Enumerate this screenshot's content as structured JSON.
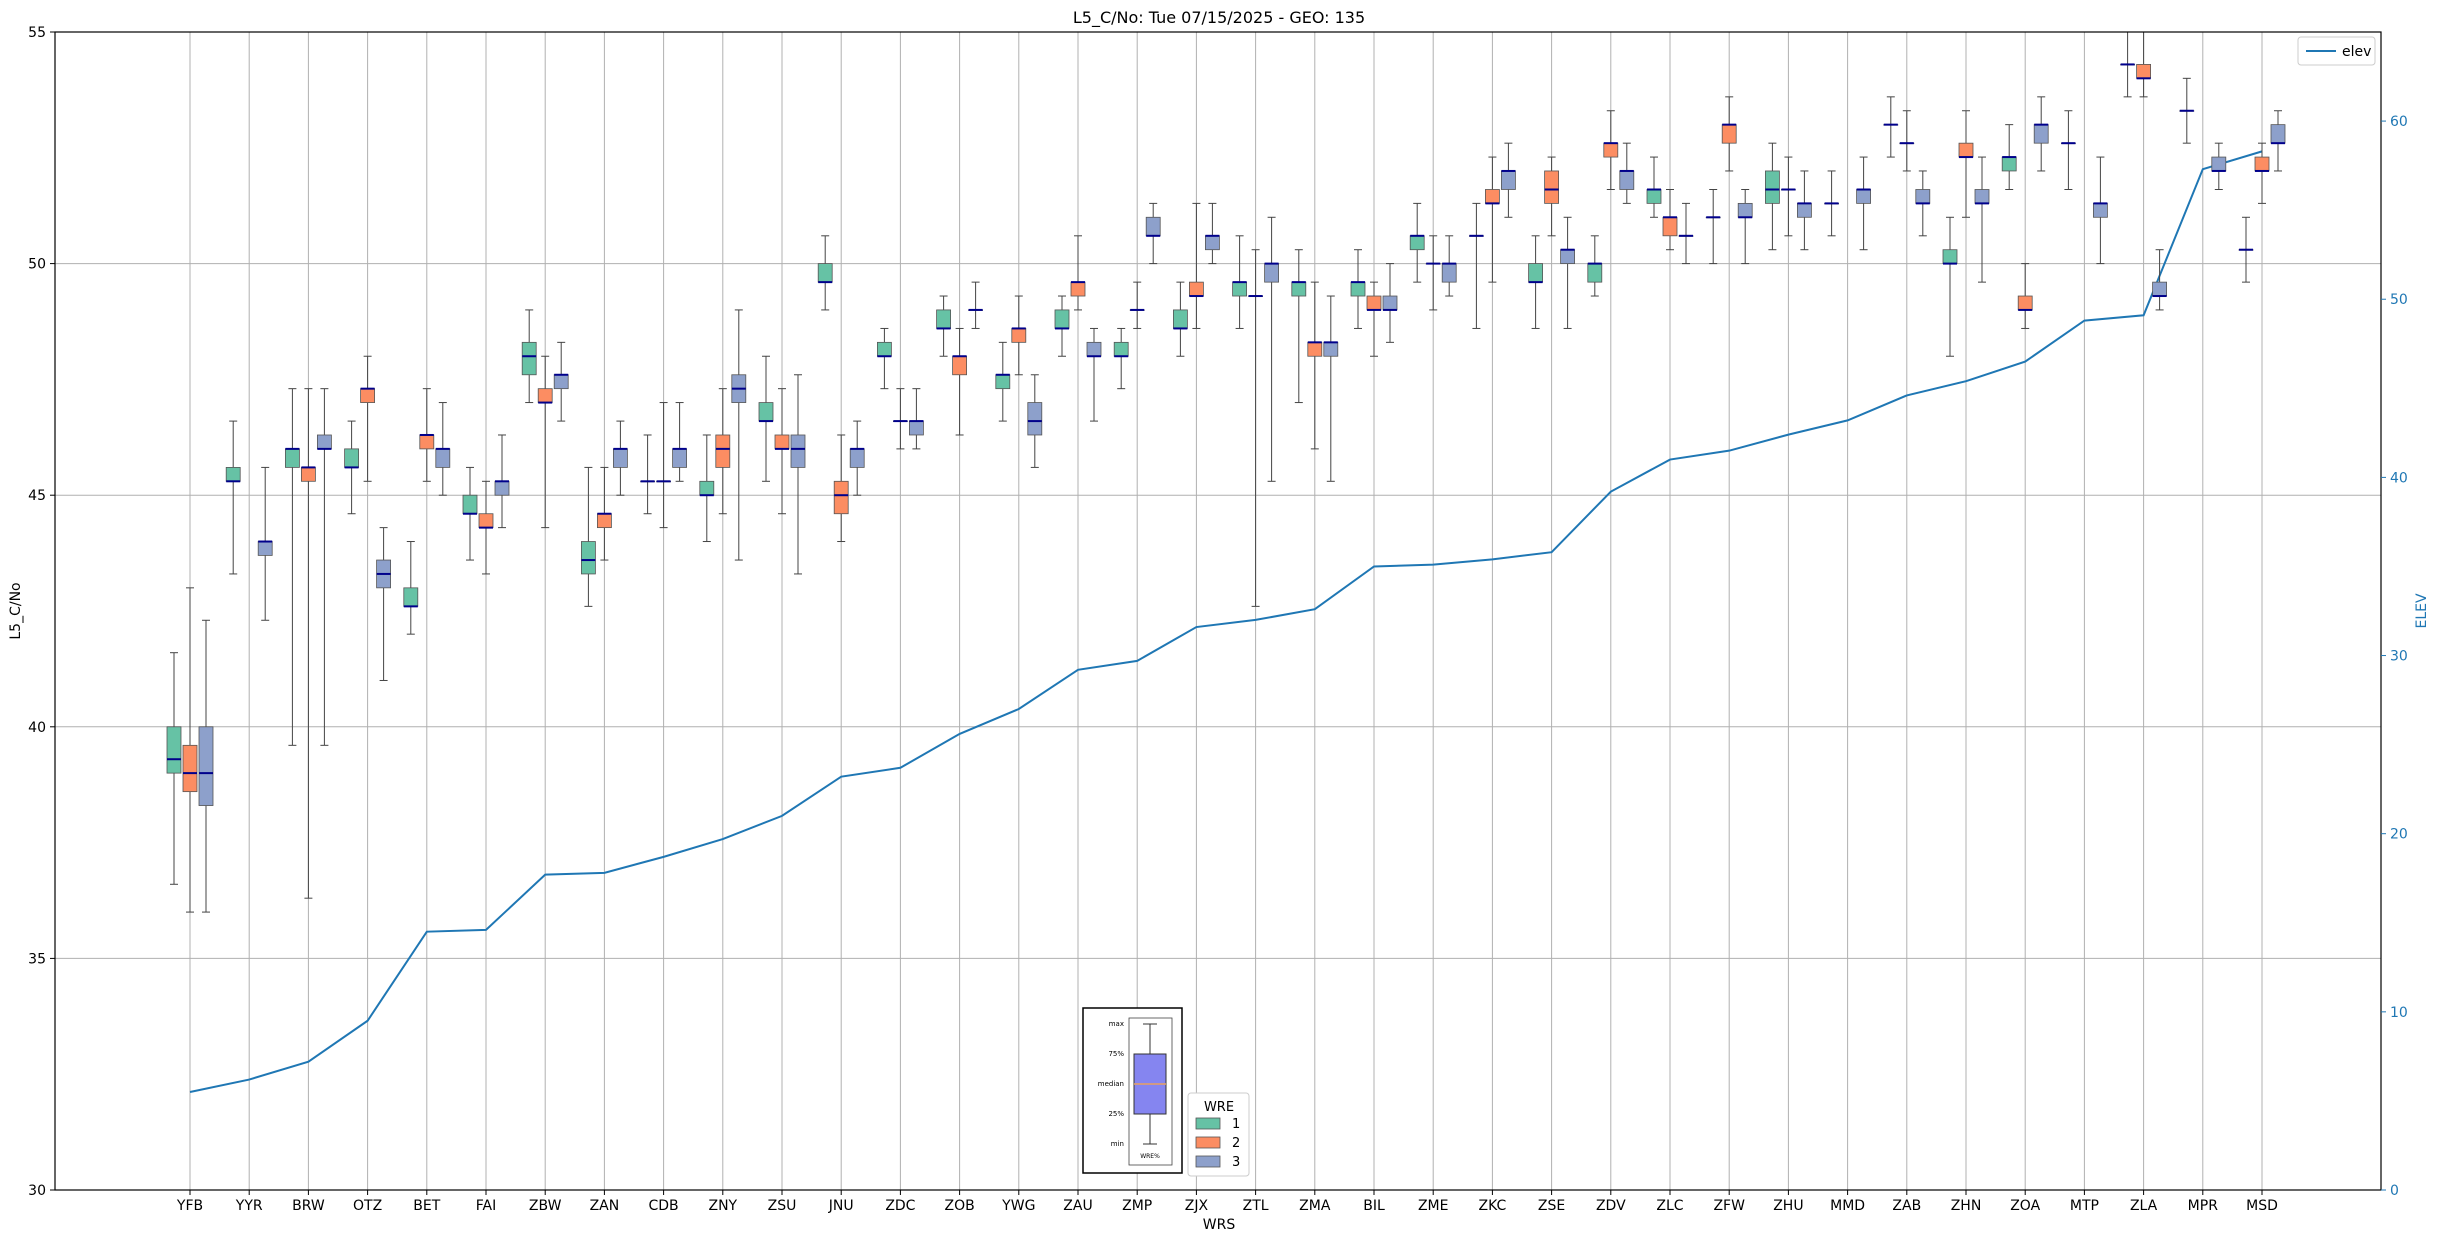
{
  "chart_data": {
    "type": "box",
    "title": "L5_C/No: Tue 07/15/2025 - GEO: 135",
    "xlabel": "WRS",
    "ylabel": "L5_C/No",
    "y2label": "ELEV",
    "ylim": [
      30,
      55
    ],
    "y2lim": [
      0,
      65
    ],
    "yticks": [
      30,
      35,
      40,
      45,
      50,
      55
    ],
    "y2ticks": [
      0,
      10,
      20,
      30,
      40,
      50,
      60
    ],
    "grid": true,
    "categories": [
      "YFB",
      "YYR",
      "BRW",
      "OTZ",
      "BET",
      "FAI",
      "ZBW",
      "ZAN",
      "CDB",
      "ZNY",
      "ZSU",
      "JNU",
      "ZDC",
      "ZOB",
      "YWG",
      "ZAU",
      "ZMP",
      "ZJX",
      "ZTL",
      "ZMA",
      "BIL",
      "ZME",
      "ZKC",
      "ZSE",
      "ZDV",
      "ZLC",
      "ZFW",
      "ZHU",
      "MMD",
      "ZAB",
      "ZHN",
      "ZOA",
      "MTP",
      "ZLA",
      "MPR",
      "MSD"
    ],
    "series_colors": {
      "1": "#66c2a5",
      "2": "#fc8d62",
      "3": "#8da0cb"
    },
    "median_color": "#00008b",
    "elev_color": "#1f77b4",
    "boxes": [
      {
        "cat": "YFB",
        "wre": 1,
        "min": 36.6,
        "q1": 39.0,
        "median": 39.3,
        "q3": 40.0,
        "max": 41.6
      },
      {
        "cat": "YFB",
        "wre": 2,
        "min": 36.0,
        "q1": 38.6,
        "median": 39.0,
        "q3": 39.6,
        "max": 43.0
      },
      {
        "cat": "YFB",
        "wre": 3,
        "min": 36.0,
        "q1": 38.3,
        "median": 39.0,
        "q3": 40.0,
        "max": 42.3
      },
      {
        "cat": "YYR",
        "wre": 1,
        "min": 43.3,
        "q1": 45.3,
        "median": 45.3,
        "q3": 45.6,
        "max": 46.6
      },
      {
        "cat": "YYR",
        "wre": 3,
        "min": 42.3,
        "q1": 43.7,
        "median": 44.0,
        "q3": 44.0,
        "max": 45.6
      },
      {
        "cat": "BRW",
        "wre": 1,
        "min": 39.6,
        "q1": 45.6,
        "median": 46.0,
        "q3": 46.0,
        "max": 47.3
      },
      {
        "cat": "BRW",
        "wre": 2,
        "min": 36.3,
        "q1": 45.3,
        "median": 45.6,
        "q3": 45.6,
        "max": 47.3
      },
      {
        "cat": "BRW",
        "wre": 3,
        "min": 39.6,
        "q1": 46.0,
        "median": 46.0,
        "q3": 46.3,
        "max": 47.3
      },
      {
        "cat": "OTZ",
        "wre": 1,
        "min": 44.6,
        "q1": 45.6,
        "median": 45.6,
        "q3": 46.0,
        "max": 46.6
      },
      {
        "cat": "OTZ",
        "wre": 2,
        "min": 45.3,
        "q1": 47.0,
        "median": 47.3,
        "q3": 47.3,
        "max": 48.0
      },
      {
        "cat": "OTZ",
        "wre": 3,
        "min": 41.0,
        "q1": 43.0,
        "median": 43.3,
        "q3": 43.6,
        "max": 44.3
      },
      {
        "cat": "BET",
        "wre": 1,
        "min": 42.0,
        "q1": 42.6,
        "median": 42.6,
        "q3": 43.0,
        "max": 44.0
      },
      {
        "cat": "BET",
        "wre": 2,
        "min": 45.3,
        "q1": 46.0,
        "median": 46.3,
        "q3": 46.3,
        "max": 47.3
      },
      {
        "cat": "BET",
        "wre": 3,
        "min": 45.0,
        "q1": 45.6,
        "median": 46.0,
        "q3": 46.0,
        "max": 47.0
      },
      {
        "cat": "FAI",
        "wre": 1,
        "min": 43.6,
        "q1": 44.6,
        "median": 44.6,
        "q3": 45.0,
        "max": 45.6
      },
      {
        "cat": "FAI",
        "wre": 2,
        "min": 43.3,
        "q1": 44.3,
        "median": 44.3,
        "q3": 44.6,
        "max": 45.3
      },
      {
        "cat": "FAI",
        "wre": 3,
        "min": 44.3,
        "q1": 45.0,
        "median": 45.3,
        "q3": 45.3,
        "max": 46.3
      },
      {
        "cat": "ZBW",
        "wre": 1,
        "min": 47.0,
        "q1": 47.6,
        "median": 48.0,
        "q3": 48.3,
        "max": 49.0
      },
      {
        "cat": "ZBW",
        "wre": 2,
        "min": 44.3,
        "q1": 47.0,
        "median": 47.0,
        "q3": 47.3,
        "max": 48.0
      },
      {
        "cat": "ZBW",
        "wre": 3,
        "min": 46.6,
        "q1": 47.3,
        "median": 47.6,
        "q3": 47.6,
        "max": 48.3
      },
      {
        "cat": "ZAN",
        "wre": 1,
        "min": 42.6,
        "q1": 43.3,
        "median": 43.6,
        "q3": 44.0,
        "max": 45.6
      },
      {
        "cat": "ZAN",
        "wre": 2,
        "min": 43.6,
        "q1": 44.3,
        "median": 44.6,
        "q3": 44.6,
        "max": 45.6
      },
      {
        "cat": "ZAN",
        "wre": 3,
        "min": 45.0,
        "q1": 45.6,
        "median": 46.0,
        "q3": 46.0,
        "max": 46.6
      },
      {
        "cat": "CDB",
        "wre": 1,
        "min": 44.6,
        "q1": 45.3,
        "median": 45.3,
        "q3": 45.3,
        "max": 46.3
      },
      {
        "cat": "CDB",
        "wre": 2,
        "min": 44.3,
        "q1": 45.3,
        "median": 45.3,
        "q3": 45.3,
        "max": 47.0
      },
      {
        "cat": "CDB",
        "wre": 3,
        "min": 45.3,
        "q1": 45.6,
        "median": 46.0,
        "q3": 46.0,
        "max": 47.0
      },
      {
        "cat": "ZNY",
        "wre": 1,
        "min": 44.0,
        "q1": 45.0,
        "median": 45.0,
        "q3": 45.3,
        "max": 46.3
      },
      {
        "cat": "ZNY",
        "wre": 2,
        "min": 44.6,
        "q1": 45.6,
        "median": 46.0,
        "q3": 46.3,
        "max": 47.3
      },
      {
        "cat": "ZNY",
        "wre": 3,
        "min": 43.6,
        "q1": 47.0,
        "median": 47.3,
        "q3": 47.6,
        "max": 49.0
      },
      {
        "cat": "ZSU",
        "wre": 1,
        "min": 45.3,
        "q1": 46.6,
        "median": 46.6,
        "q3": 47.0,
        "max": 48.0
      },
      {
        "cat": "ZSU",
        "wre": 2,
        "min": 44.6,
        "q1": 46.0,
        "median": 46.0,
        "q3": 46.3,
        "max": 47.3
      },
      {
        "cat": "ZSU",
        "wre": 3,
        "min": 43.3,
        "q1": 45.6,
        "median": 46.0,
        "q3": 46.3,
        "max": 47.6
      },
      {
        "cat": "JNU",
        "wre": 1,
        "min": 49.0,
        "q1": 49.6,
        "median": 49.6,
        "q3": 50.0,
        "max": 50.6
      },
      {
        "cat": "JNU",
        "wre": 2,
        "min": 44.0,
        "q1": 44.6,
        "median": 45.0,
        "q3": 45.3,
        "max": 46.3
      },
      {
        "cat": "JNU",
        "wre": 3,
        "min": 45.0,
        "q1": 45.6,
        "median": 46.0,
        "q3": 46.0,
        "max": 46.6
      },
      {
        "cat": "ZDC",
        "wre": 1,
        "min": 47.3,
        "q1": 48.0,
        "median": 48.0,
        "q3": 48.3,
        "max": 48.6
      },
      {
        "cat": "ZDC",
        "wre": 2,
        "min": 46.0,
        "q1": 46.6,
        "median": 46.6,
        "q3": 46.6,
        "max": 47.3
      },
      {
        "cat": "ZDC",
        "wre": 3,
        "min": 46.0,
        "q1": 46.3,
        "median": 46.6,
        "q3": 46.6,
        "max": 47.3
      },
      {
        "cat": "ZOB",
        "wre": 1,
        "min": 48.0,
        "q1": 48.6,
        "median": 48.6,
        "q3": 49.0,
        "max": 49.3
      },
      {
        "cat": "ZOB",
        "wre": 2,
        "min": 46.3,
        "q1": 47.6,
        "median": 48.0,
        "q3": 48.0,
        "max": 48.6
      },
      {
        "cat": "ZOB",
        "wre": 3,
        "min": 48.6,
        "q1": 49.0,
        "median": 49.0,
        "q3": 49.0,
        "max": 49.6
      },
      {
        "cat": "YWG",
        "wre": 1,
        "min": 46.6,
        "q1": 47.3,
        "median": 47.6,
        "q3": 47.6,
        "max": 48.3
      },
      {
        "cat": "YWG",
        "wre": 2,
        "min": 47.6,
        "q1": 48.3,
        "median": 48.6,
        "q3": 48.6,
        "max": 49.3
      },
      {
        "cat": "YWG",
        "wre": 3,
        "min": 45.6,
        "q1": 46.3,
        "median": 46.6,
        "q3": 47.0,
        "max": 47.6
      },
      {
        "cat": "ZAU",
        "wre": 1,
        "min": 48.0,
        "q1": 48.6,
        "median": 48.6,
        "q3": 49.0,
        "max": 49.3
      },
      {
        "cat": "ZAU",
        "wre": 2,
        "min": 49.0,
        "q1": 49.3,
        "median": 49.6,
        "q3": 49.6,
        "max": 50.6
      },
      {
        "cat": "ZAU",
        "wre": 3,
        "min": 46.6,
        "q1": 48.0,
        "median": 48.0,
        "q3": 48.3,
        "max": 48.6
      },
      {
        "cat": "ZMP",
        "wre": 1,
        "min": 47.3,
        "q1": 48.0,
        "median": 48.0,
        "q3": 48.3,
        "max": 48.6
      },
      {
        "cat": "ZMP",
        "wre": 2,
        "min": 48.6,
        "q1": 49.0,
        "median": 49.0,
        "q3": 49.0,
        "max": 49.6
      },
      {
        "cat": "ZMP",
        "wre": 3,
        "min": 50.0,
        "q1": 50.6,
        "median": 50.6,
        "q3": 51.0,
        "max": 51.3
      },
      {
        "cat": "ZJX",
        "wre": 1,
        "min": 48.0,
        "q1": 48.6,
        "median": 48.6,
        "q3": 49.0,
        "max": 49.6
      },
      {
        "cat": "ZJX",
        "wre": 2,
        "min": 48.6,
        "q1": 49.3,
        "median": 49.3,
        "q3": 49.6,
        "max": 51.3
      },
      {
        "cat": "ZJX",
        "wre": 3,
        "min": 50.0,
        "q1": 50.3,
        "median": 50.6,
        "q3": 50.6,
        "max": 51.3
      },
      {
        "cat": "ZTL",
        "wre": 1,
        "min": 48.6,
        "q1": 49.3,
        "median": 49.6,
        "q3": 49.6,
        "max": 50.6
      },
      {
        "cat": "ZTL",
        "wre": 2,
        "min": 42.6,
        "q1": 49.3,
        "median": 49.3,
        "q3": 49.3,
        "max": 50.3
      },
      {
        "cat": "ZTL",
        "wre": 3,
        "min": 45.3,
        "q1": 49.6,
        "median": 50.0,
        "q3": 50.0,
        "max": 51.0
      },
      {
        "cat": "ZMA",
        "wre": 1,
        "min": 47.0,
        "q1": 49.3,
        "median": 49.6,
        "q3": 49.6,
        "max": 50.3
      },
      {
        "cat": "ZMA",
        "wre": 2,
        "min": 46.0,
        "q1": 48.0,
        "median": 48.3,
        "q3": 48.3,
        "max": 49.6
      },
      {
        "cat": "ZMA",
        "wre": 3,
        "min": 45.3,
        "q1": 48.0,
        "median": 48.3,
        "q3": 48.3,
        "max": 49.3
      },
      {
        "cat": "BIL",
        "wre": 1,
        "min": 48.6,
        "q1": 49.3,
        "median": 49.6,
        "q3": 49.6,
        "max": 50.3
      },
      {
        "cat": "BIL",
        "wre": 2,
        "min": 48.0,
        "q1": 49.0,
        "median": 49.0,
        "q3": 49.3,
        "max": 49.6
      },
      {
        "cat": "BIL",
        "wre": 3,
        "min": 48.3,
        "q1": 49.0,
        "median": 49.0,
        "q3": 49.3,
        "max": 50.0
      },
      {
        "cat": "ZME",
        "wre": 1,
        "min": 49.6,
        "q1": 50.3,
        "median": 50.6,
        "q3": 50.6,
        "max": 51.3
      },
      {
        "cat": "ZME",
        "wre": 2,
        "min": 49.0,
        "q1": 50.0,
        "median": 50.0,
        "q3": 50.0,
        "max": 50.6
      },
      {
        "cat": "ZME",
        "wre": 3,
        "min": 49.3,
        "q1": 49.6,
        "median": 50.0,
        "q3": 50.0,
        "max": 50.6
      },
      {
        "cat": "ZKC",
        "wre": 1,
        "min": 48.6,
        "q1": 50.6,
        "median": 50.6,
        "q3": 50.6,
        "max": 51.3
      },
      {
        "cat": "ZKC",
        "wre": 2,
        "min": 49.6,
        "q1": 51.3,
        "median": 51.3,
        "q3": 51.6,
        "max": 52.3
      },
      {
        "cat": "ZKC",
        "wre": 3,
        "min": 51.0,
        "q1": 51.6,
        "median": 52.0,
        "q3": 52.0,
        "max": 52.6
      },
      {
        "cat": "ZSE",
        "wre": 1,
        "min": 48.6,
        "q1": 49.6,
        "median": 49.6,
        "q3": 50.0,
        "max": 50.6
      },
      {
        "cat": "ZSE",
        "wre": 2,
        "min": 50.6,
        "q1": 51.3,
        "median": 51.6,
        "q3": 52.0,
        "max": 52.3
      },
      {
        "cat": "ZSE",
        "wre": 3,
        "min": 48.6,
        "q1": 50.0,
        "median": 50.3,
        "q3": 50.3,
        "max": 51.0
      },
      {
        "cat": "ZDV",
        "wre": 1,
        "min": 49.3,
        "q1": 49.6,
        "median": 50.0,
        "q3": 50.0,
        "max": 50.6
      },
      {
        "cat": "ZDV",
        "wre": 2,
        "min": 51.6,
        "q1": 52.3,
        "median": 52.6,
        "q3": 52.6,
        "max": 53.3
      },
      {
        "cat": "ZDV",
        "wre": 3,
        "min": 51.3,
        "q1": 51.6,
        "median": 52.0,
        "q3": 52.0,
        "max": 52.6
      },
      {
        "cat": "ZLC",
        "wre": 1,
        "min": 51.0,
        "q1": 51.3,
        "median": 51.6,
        "q3": 51.6,
        "max": 52.3
      },
      {
        "cat": "ZLC",
        "wre": 2,
        "min": 50.3,
        "q1": 50.6,
        "median": 51.0,
        "q3": 51.0,
        "max": 51.6
      },
      {
        "cat": "ZLC",
        "wre": 3,
        "min": 50.0,
        "q1": 50.6,
        "median": 50.6,
        "q3": 50.6,
        "max": 51.3
      },
      {
        "cat": "ZFW",
        "wre": 1,
        "min": 50.0,
        "q1": 51.0,
        "median": 51.0,
        "q3": 51.0,
        "max": 51.6
      },
      {
        "cat": "ZFW",
        "wre": 2,
        "min": 52.0,
        "q1": 52.6,
        "median": 53.0,
        "q3": 53.0,
        "max": 53.6
      },
      {
        "cat": "ZFW",
        "wre": 3,
        "min": 50.0,
        "q1": 51.0,
        "median": 51.0,
        "q3": 51.3,
        "max": 51.6
      },
      {
        "cat": "ZHU",
        "wre": 1,
        "min": 50.3,
        "q1": 51.3,
        "median": 51.6,
        "q3": 52.0,
        "max": 52.6
      },
      {
        "cat": "ZHU",
        "wre": 2,
        "min": 50.6,
        "q1": 51.6,
        "median": 51.6,
        "q3": 51.6,
        "max": 52.3
      },
      {
        "cat": "ZHU",
        "wre": 3,
        "min": 50.3,
        "q1": 51.0,
        "median": 51.3,
        "q3": 51.3,
        "max": 52.0
      },
      {
        "cat": "MMD",
        "wre": 1,
        "min": 50.6,
        "q1": 51.3,
        "median": 51.3,
        "q3": 51.3,
        "max": 52.0
      },
      {
        "cat": "MMD",
        "wre": 3,
        "min": 50.3,
        "q1": 51.3,
        "median": 51.6,
        "q3": 51.6,
        "max": 52.3
      },
      {
        "cat": "ZAB",
        "wre": 1,
        "min": 52.3,
        "q1": 53.0,
        "median": 53.0,
        "q3": 53.0,
        "max": 53.6
      },
      {
        "cat": "ZAB",
        "wre": 2,
        "min": 52.0,
        "q1": 52.6,
        "median": 52.6,
        "q3": 52.6,
        "max": 53.3
      },
      {
        "cat": "ZAB",
        "wre": 3,
        "min": 50.6,
        "q1": 51.3,
        "median": 51.3,
        "q3": 51.6,
        "max": 52.0
      },
      {
        "cat": "ZHN",
        "wre": 1,
        "min": 48.0,
        "q1": 50.0,
        "median": 50.0,
        "q3": 50.3,
        "max": 51.0
      },
      {
        "cat": "ZHN",
        "wre": 2,
        "min": 51.0,
        "q1": 52.3,
        "median": 52.3,
        "q3": 52.6,
        "max": 53.3
      },
      {
        "cat": "ZHN",
        "wre": 3,
        "min": 49.6,
        "q1": 51.3,
        "median": 51.3,
        "q3": 51.6,
        "max": 52.3
      },
      {
        "cat": "ZOA",
        "wre": 1,
        "min": 51.6,
        "q1": 52.0,
        "median": 52.3,
        "q3": 52.3,
        "max": 53.0
      },
      {
        "cat": "ZOA",
        "wre": 2,
        "min": 48.6,
        "q1": 49.0,
        "median": 49.0,
        "q3": 49.3,
        "max": 50.0
      },
      {
        "cat": "ZOA",
        "wre": 3,
        "min": 52.0,
        "q1": 52.6,
        "median": 53.0,
        "q3": 53.0,
        "max": 53.6
      },
      {
        "cat": "MTP",
        "wre": 1,
        "min": 51.6,
        "q1": 52.6,
        "median": 52.6,
        "q3": 52.6,
        "max": 53.3
      },
      {
        "cat": "MTP",
        "wre": 3,
        "min": 50.0,
        "q1": 51.0,
        "median": 51.3,
        "q3": 51.3,
        "max": 52.3
      },
      {
        "cat": "ZLA",
        "wre": 1,
        "min": 53.6,
        "q1": 54.3,
        "median": 54.3,
        "q3": 54.3,
        "max": 55.0
      },
      {
        "cat": "ZLA",
        "wre": 2,
        "min": 53.6,
        "q1": 54.0,
        "median": 54.0,
        "q3": 54.3,
        "max": 55.0
      },
      {
        "cat": "ZLA",
        "wre": 3,
        "min": 49.0,
        "q1": 49.3,
        "median": 49.3,
        "q3": 49.6,
        "max": 50.3
      },
      {
        "cat": "MPR",
        "wre": 1,
        "min": 52.6,
        "q1": 53.3,
        "median": 53.3,
        "q3": 53.3,
        "max": 54.0
      },
      {
        "cat": "MPR",
        "wre": 3,
        "min": 51.6,
        "q1": 52.0,
        "median": 52.0,
        "q3": 52.3,
        "max": 52.6
      },
      {
        "cat": "MSD",
        "wre": 1,
        "min": 49.6,
        "q1": 50.3,
        "median": 50.3,
        "q3": 50.3,
        "max": 51.0
      },
      {
        "cat": "MSD",
        "wre": 2,
        "min": 51.3,
        "q1": 52.0,
        "median": 52.0,
        "q3": 52.3,
        "max": 52.6
      },
      {
        "cat": "MSD",
        "wre": 3,
        "min": 52.0,
        "q1": 52.6,
        "median": 52.6,
        "q3": 53.0,
        "max": 53.3
      }
    ],
    "elev": {
      "name": "elev",
      "values": [
        5.5,
        6.2,
        7.2,
        9.5,
        14.5,
        14.6,
        17.7,
        17.8,
        18.7,
        19.7,
        21.0,
        23.2,
        23.7,
        25.6,
        27.0,
        29.2,
        29.7,
        31.6,
        32.0,
        32.6,
        35.0,
        35.1,
        35.4,
        35.8,
        39.2,
        41.0,
        41.5,
        42.4,
        43.2,
        44.6,
        45.4,
        46.5,
        48.8,
        49.1,
        57.3,
        58.3
      ]
    },
    "legend_elev": {
      "label": "elev",
      "position": "top-right"
    },
    "legend_wre": {
      "title": "WRE",
      "entries": [
        "1",
        "2",
        "3"
      ],
      "position": "bottom-center"
    },
    "inset_key": {
      "labels": [
        "max",
        "75%",
        "median",
        "25%",
        "min"
      ],
      "xlabel": "WRE%"
    },
    "inset_values": {
      "min": 0,
      "q1": 25,
      "median": 50,
      "q3": 75,
      "max": 100
    }
  }
}
